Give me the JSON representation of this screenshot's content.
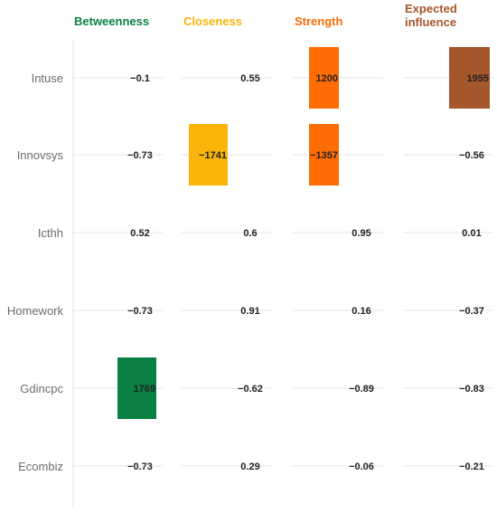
{
  "chart_data": {
    "type": "heatmap",
    "title": "",
    "rows": [
      "Intuse",
      "Innovsys",
      "Icthh",
      "Homework",
      "Gdincpc",
      "Ecombiz"
    ],
    "columns": [
      {
        "label": "Betweenness",
        "color": "#0a8043"
      },
      {
        "label": "Closeness",
        "color": "#fbb40a"
      },
      {
        "label": "Strength",
        "color": "#ff6c04"
      },
      {
        "label": "Expected influence",
        "color": "#a5562a"
      }
    ],
    "values": [
      [
        -0.1,
        0.55,
        1200,
        1955
      ],
      [
        -0.73,
        -1741,
        -1357,
        -0.56
      ],
      [
        0.52,
        0.6,
        0.95,
        0.01
      ],
      [
        -0.73,
        0.91,
        0.16,
        -0.37
      ],
      [
        1769,
        -0.62,
        -0.89,
        -0.83
      ],
      [
        -0.73,
        0.29,
        -0.06,
        -0.21
      ]
    ],
    "labels": [
      [
        "−0.1",
        "0.55",
        "1200",
        "1955"
      ],
      [
        "−0.73",
        "−1741",
        "−1357",
        "−0.56"
      ],
      [
        "0.52",
        "0.6",
        "0.95",
        "0.01"
      ],
      [
        "−0.73",
        "0.91",
        "0.16",
        "−0.37"
      ],
      [
        "1769",
        "−0.62",
        "−0.89",
        "−0.83"
      ],
      [
        "−0.73",
        "0.29",
        "−0.06",
        "−0.21"
      ]
    ],
    "highlighted": [
      [
        0,
        2
      ],
      [
        0,
        3
      ],
      [
        1,
        1
      ],
      [
        1,
        2
      ],
      [
        4,
        0
      ]
    ],
    "gridline_color": "#e6e6e6"
  }
}
